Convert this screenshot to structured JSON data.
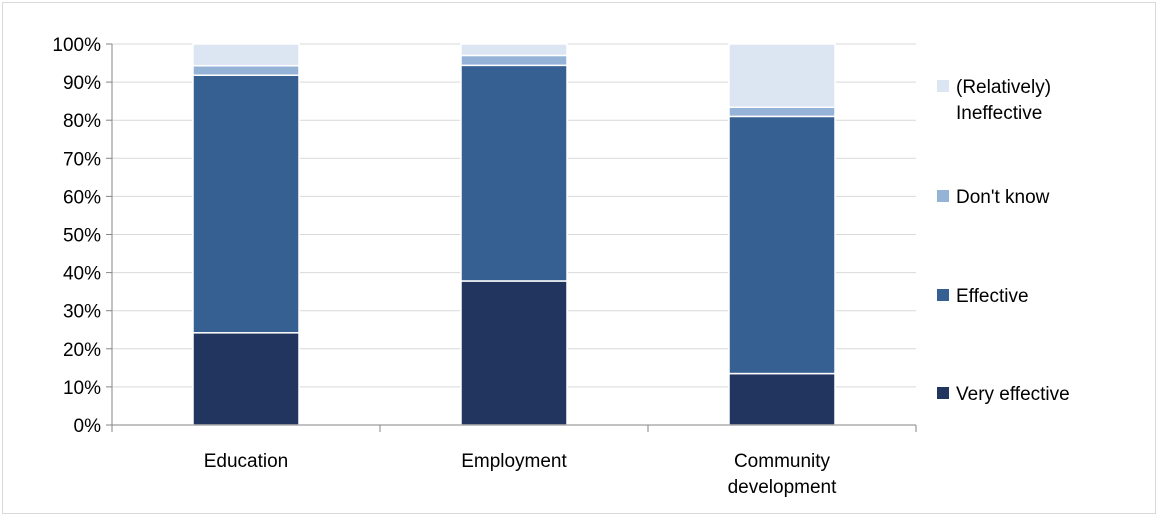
{
  "chart_data": {
    "type": "bar",
    "stacked": true,
    "normalized": true,
    "categories": [
      [
        "Education"
      ],
      [
        "Employment"
      ],
      [
        "Community",
        "development"
      ]
    ],
    "series": [
      {
        "name": "Very effective",
        "color": "#22355e",
        "values": [
          24.2,
          37.8,
          13.5
        ]
      },
      {
        "name": "Effective",
        "color": "#376092",
        "values": [
          67.6,
          56.6,
          67.5
        ]
      },
      {
        "name": "Don't know",
        "color": "#95b3d7",
        "values": [
          2.5,
          2.6,
          2.4
        ]
      },
      {
        "name": "(Relatively) Ineffective",
        "color": "#dce6f2",
        "values": [
          5.7,
          3.0,
          16.6
        ]
      }
    ],
    "legend_order": [
      3,
      2,
      1,
      0
    ],
    "legend_labels": [
      [
        "(Relatively)",
        "Ineffective"
      ],
      [
        "Don't know"
      ],
      [
        "Effective"
      ],
      [
        "Very effective"
      ]
    ],
    "y_ticks": [
      "0%",
      "10%",
      "20%",
      "30%",
      "40%",
      "50%",
      "60%",
      "70%",
      "80%",
      "90%",
      "100%"
    ],
    "ylim": [
      0,
      100
    ],
    "grid": true,
    "legend_position": "right",
    "title": "",
    "xlabel": "",
    "ylabel": ""
  }
}
